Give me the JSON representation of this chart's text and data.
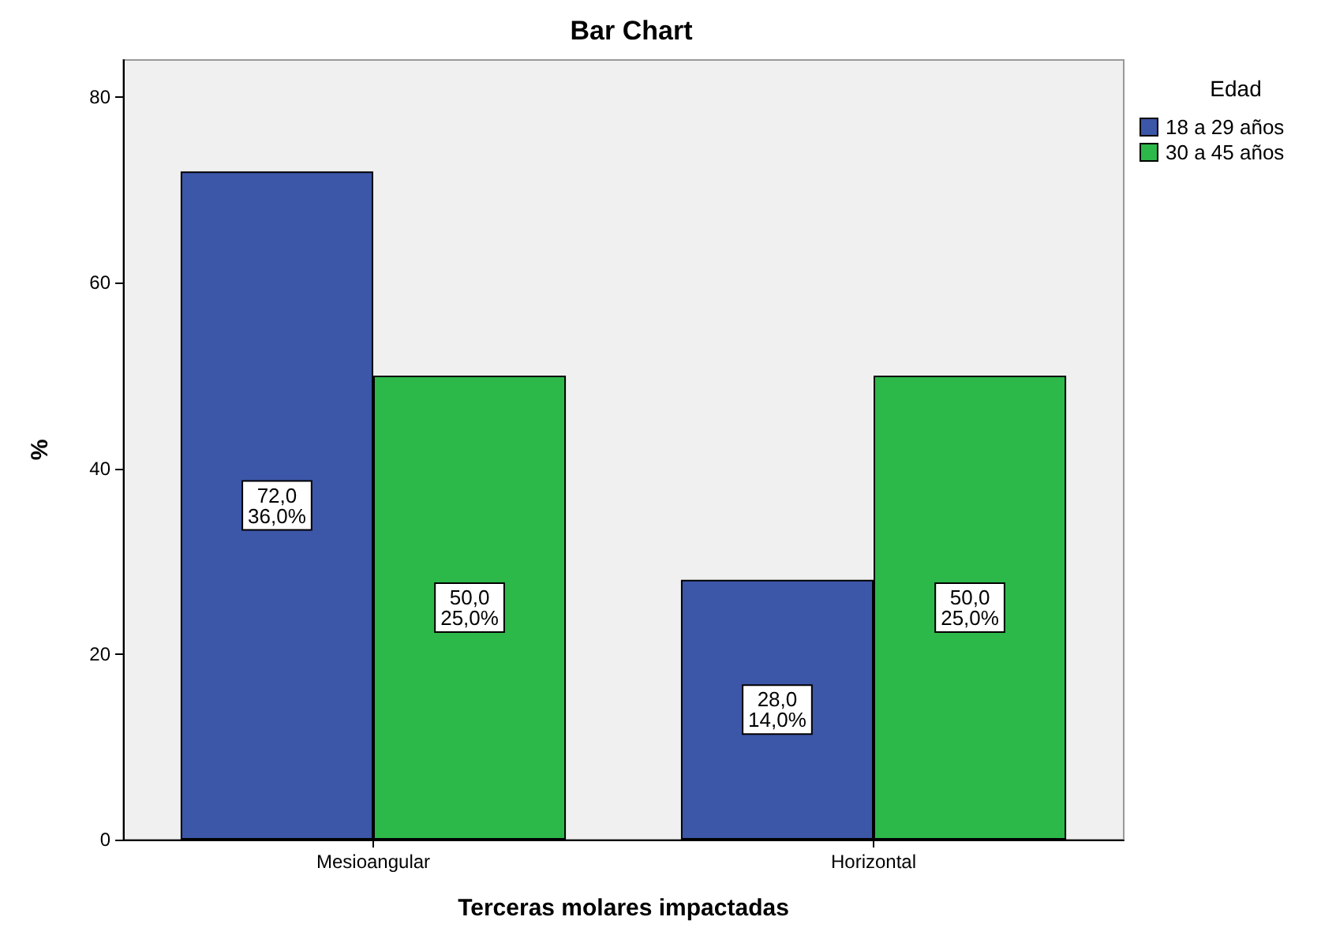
{
  "chart_data": {
    "type": "bar",
    "title": "Bar Chart",
    "xlabel": "Terceras molares impactadas",
    "ylabel": "%",
    "legend_title": "Edad",
    "categories": [
      "Mesioangular",
      "Horizontal"
    ],
    "series": [
      {
        "name": "18 a 29 años",
        "color": "#3c56a8",
        "values": [
          72,
          28
        ],
        "value_labels": [
          "72,0\n36,0%",
          "28,0\n14,0%"
        ]
      },
      {
        "name": "30 a 45 años",
        "color": "#2db84a",
        "values": [
          50,
          50
        ],
        "value_labels": [
          "50,0\n25,0%",
          "50,0\n25,0%"
        ]
      }
    ],
    "ylim": [
      0,
      84
    ],
    "yticks": [
      0,
      20,
      40,
      60,
      80
    ],
    "grid": false,
    "legend": "top right"
  }
}
